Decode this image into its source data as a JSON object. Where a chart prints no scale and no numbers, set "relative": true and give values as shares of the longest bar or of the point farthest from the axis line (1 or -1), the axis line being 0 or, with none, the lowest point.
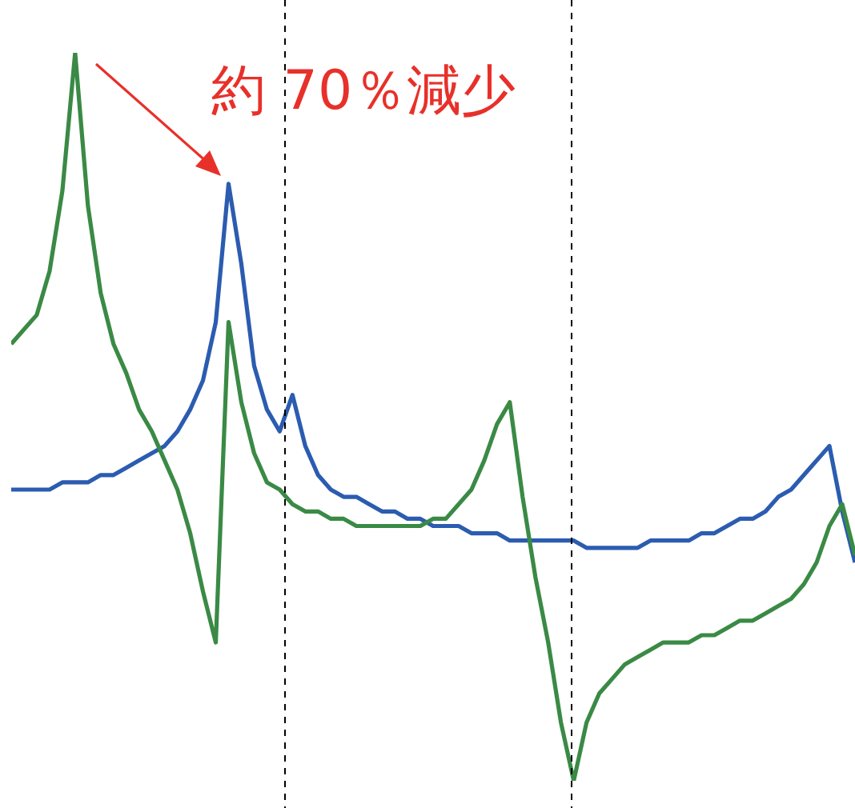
{
  "chart_data": {
    "type": "line",
    "relative": true,
    "marker": "none",
    "line_style": "solid",
    "categories": [
      null,
      null,
      null,
      null,
      null,
      null,
      null,
      null,
      null,
      null,
      null,
      null,
      null,
      null,
      null,
      null,
      null,
      null,
      null,
      null,
      null,
      null,
      null,
      null,
      null,
      null,
      null,
      null,
      null,
      null,
      null,
      null,
      null,
      null,
      null,
      null,
      null,
      null,
      null,
      null,
      null,
      null,
      null,
      null,
      null,
      null,
      null,
      null,
      null,
      null,
      null,
      null,
      null,
      null,
      null,
      null,
      null,
      null,
      null,
      null,
      null,
      null,
      null,
      null,
      null,
      null,
      null
    ],
    "series": [
      {
        "color": "#2b5cb0",
        "values": [
          0.4,
          0.4,
          0.4,
          0.4,
          0.41,
          0.41,
          0.41,
          0.42,
          0.42,
          0.43,
          0.44,
          0.45,
          0.46,
          0.48,
          0.51,
          0.55,
          0.63,
          0.82,
          0.71,
          0.57,
          0.51,
          0.48,
          0.53,
          0.46,
          0.42,
          0.4,
          0.39,
          0.39,
          0.38,
          0.37,
          0.37,
          0.36,
          0.36,
          0.35,
          0.35,
          0.35,
          0.34,
          0.34,
          0.34,
          0.33,
          0.33,
          0.33,
          0.33,
          0.33,
          0.33,
          0.32,
          0.32,
          0.32,
          0.32,
          0.32,
          0.33,
          0.33,
          0.33,
          0.33,
          0.34,
          0.34,
          0.35,
          0.36,
          0.36,
          0.37,
          0.39,
          0.4,
          0.42,
          0.44,
          0.46,
          0.37,
          0.3
        ]
      },
      {
        "color": "#3a8a45",
        "values": [
          0.6,
          0.62,
          0.64,
          0.7,
          0.81,
          1,
          0.79,
          0.67,
          0.6,
          0.56,
          0.51,
          0.48,
          0.44,
          0.4,
          0.34,
          0.26,
          0.19,
          0.63,
          0.52,
          0.45,
          0.41,
          0.4,
          0.38,
          0.37,
          0.37,
          0.36,
          0.36,
          0.35,
          0.35,
          0.35,
          0.35,
          0.35,
          0.35,
          0.36,
          0.36,
          0.38,
          0.4,
          0.44,
          0.49,
          0.52,
          0.39,
          0.28,
          0.19,
          0.08,
          0,
          0.08,
          0.12,
          0.14,
          0.16,
          0.17,
          0.18,
          0.19,
          0.19,
          0.19,
          0.2,
          0.2,
          0.21,
          0.22,
          0.22,
          0.23,
          0.24,
          0.25,
          0.27,
          0.3,
          0.35,
          0.38,
          0.31
        ]
      }
    ],
    "annotations": [
      "約 70％減少"
    ],
    "grid": false,
    "legend": false
  }
}
